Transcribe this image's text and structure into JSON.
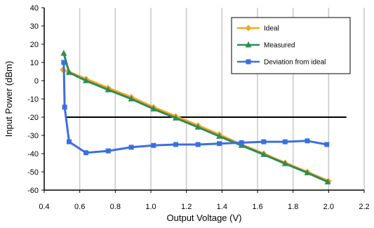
{
  "chart_data": {
    "type": "line",
    "title": "",
    "xlabel": "Output Voltage (V)",
    "ylabel": "Input Power (dBm)",
    "xlim": [
      0.4,
      2.2
    ],
    "ylim": [
      -60,
      40
    ],
    "x_ticks": [
      0.4,
      0.6,
      0.8,
      1.0,
      1.2,
      1.4,
      1.6,
      1.8,
      2.0,
      2.2
    ],
    "x_tick_labels": [
      "0.4",
      "0.6",
      "0.8",
      "1.0",
      "1.2",
      "1.4",
      "1.6",
      "1.8",
      "2.0",
      "2.2"
    ],
    "y_ticks": [
      40,
      30,
      20,
      10,
      0,
      -10,
      -20,
      -30,
      -40,
      -50,
      -60
    ],
    "y_tick_labels": [
      "40",
      "30",
      "20",
      "10",
      "0",
      "-10",
      "-20",
      "-30",
      "-40",
      "-50",
      "-60"
    ],
    "grid": {
      "vertical": true,
      "horizontal": false
    },
    "legend": {
      "placement": "top-right"
    },
    "series": [
      {
        "name": "Ideal",
        "color": "#F5A623",
        "marker": "diamond",
        "points": [
          [
            0.505,
            6
          ],
          [
            0.535,
            5
          ],
          [
            0.635,
            1
          ],
          [
            0.76,
            -4
          ],
          [
            0.89,
            -9
          ],
          [
            1.015,
            -14.5
          ],
          [
            1.14,
            -19.5
          ],
          [
            1.265,
            -24.5
          ],
          [
            1.385,
            -29.5
          ],
          [
            1.51,
            -35
          ],
          [
            1.635,
            -40
          ],
          [
            1.755,
            -45
          ],
          [
            1.88,
            -50
          ],
          [
            2.0,
            -55
          ]
        ]
      },
      {
        "name": "Measured",
        "color": "#2E8B57",
        "marker": "triangle",
        "points": [
          [
            0.51,
            15
          ],
          [
            0.54,
            4.5
          ],
          [
            0.635,
            0
          ],
          [
            0.76,
            -5
          ],
          [
            0.89,
            -10
          ],
          [
            1.015,
            -15.5
          ],
          [
            1.14,
            -20.5
          ],
          [
            1.265,
            -25.5
          ],
          [
            1.385,
            -30.5
          ],
          [
            1.51,
            -35.5
          ],
          [
            1.635,
            -40.5
          ],
          [
            1.755,
            -45.5
          ],
          [
            1.88,
            -50.5
          ],
          [
            1.995,
            -55.5
          ]
        ]
      },
      {
        "name": "Deviation from ideal",
        "color": "#3B6FE0",
        "marker": "square",
        "points": [
          [
            0.51,
            10
          ],
          [
            0.515,
            -14.5
          ],
          [
            0.54,
            -33.5
          ],
          [
            0.635,
            -39.5
          ],
          [
            0.76,
            -38.5
          ],
          [
            0.89,
            -36.5
          ],
          [
            1.015,
            -35.5
          ],
          [
            1.14,
            -35
          ],
          [
            1.265,
            -35
          ],
          [
            1.385,
            -34.5
          ],
          [
            1.51,
            -34
          ],
          [
            1.635,
            -33.5
          ],
          [
            1.755,
            -33.5
          ],
          [
            1.88,
            -33
          ],
          [
            1.99,
            -35
          ]
        ]
      }
    ],
    "reference_line": {
      "y": -20,
      "x_range": [
        0.52,
        2.1
      ],
      "color": "#000000"
    }
  }
}
